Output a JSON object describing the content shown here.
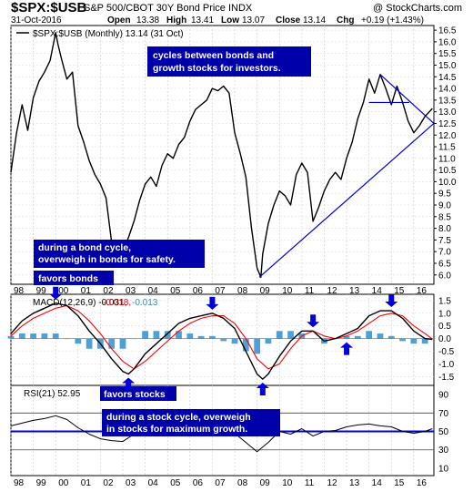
{
  "header": {
    "symbol": "$SPX:$USB",
    "name": "S&P 500/CBOT 30Y Bond Price INDX",
    "watermark": "@ StockCharts.com",
    "date": "31-Oct-2016",
    "open_label": "Open",
    "open": "13.38",
    "high_label": "High",
    "high": "13.41",
    "low_label": "Low",
    "low": "13.07",
    "close_label": "Close",
    "close": "13.14",
    "chg_label": "Chg",
    "chg": "+0.19 (+1.43%)"
  },
  "price_panel": {
    "legend": "$SPX:$USB (Monthly) 13.14 (31 Oct)"
  },
  "macd_panel": {
    "legend_label": "MACD(12,26,9) -0.031,",
    "legend_signal": "-0.018,",
    "legend_hist": "-0.013"
  },
  "rsi_panel": {
    "legend": "RSI(21) 52.95"
  },
  "annotations": {
    "cycles": [
      "cycles between bonds and",
      "growth stocks for investors."
    ],
    "bond_cycle": [
      "during a bond cycle,",
      "overweigh in bonds for safety."
    ],
    "favors_bonds": "favors bonds",
    "favors_stocks": "favors stocks",
    "stock_cycle": [
      "during a stock cycle, overweigh",
      "in stocks for maximum growth."
    ]
  },
  "chart_data": [
    {
      "type": "line",
      "panel": "price",
      "title": "$SPX:$USB (Monthly) 13.14 (31 Oct)",
      "x_categories": [
        "98",
        "99",
        "00",
        "01",
        "02",
        "03",
        "04",
        "05",
        "06",
        "07",
        "08",
        "09",
        "10",
        "11",
        "12",
        "13",
        "14",
        "15",
        "16"
      ],
      "x_range": [
        1998.0,
        2016.9
      ],
      "ylim": [
        5.6,
        16.7
      ],
      "y_ticks": [
        6.0,
        6.5,
        7.0,
        7.5,
        8.0,
        8.5,
        9.0,
        9.5,
        10.0,
        10.5,
        11.0,
        11.5,
        12.0,
        12.5,
        13.0,
        13.5,
        14.0,
        14.5,
        15.0,
        15.5,
        16.0,
        16.5
      ],
      "grid": true,
      "series": [
        {
          "color": "#000000",
          "x": [
            1998.0,
            1998.25,
            1998.5,
            1998.75,
            1999.0,
            1999.25,
            1999.5,
            1999.75,
            2000.0,
            2000.1,
            2000.25,
            2000.5,
            2000.75,
            2001.0,
            2001.25,
            2001.5,
            2001.75,
            2002.0,
            2002.25,
            2002.5,
            2002.75,
            2003.0,
            2003.25,
            2003.5,
            2003.75,
            2004.0,
            2004.25,
            2004.5,
            2004.75,
            2005.0,
            2005.25,
            2005.5,
            2005.75,
            2006.0,
            2006.25,
            2006.5,
            2006.75,
            2007.0,
            2007.25,
            2007.5,
            2007.75,
            2008.0,
            2008.25,
            2008.5,
            2008.75,
            2009.0,
            2009.17,
            2009.25,
            2009.5,
            2009.75,
            2010.0,
            2010.25,
            2010.5,
            2010.75,
            2011.0,
            2011.25,
            2011.5,
            2011.75,
            2012.0,
            2012.25,
            2012.5,
            2012.75,
            2013.0,
            2013.25,
            2013.5,
            2013.75,
            2014.0,
            2014.25,
            2014.5,
            2014.75,
            2015.0,
            2015.25,
            2015.5,
            2015.75,
            2016.0,
            2016.25,
            2016.5,
            2016.83
          ],
          "y": [
            10.4,
            12.1,
            13.3,
            12.2,
            13.6,
            14.3,
            14.7,
            15.2,
            16.4,
            15.9,
            15.3,
            14.4,
            14.7,
            12.4,
            11.7,
            10.9,
            10.3,
            9.9,
            9.3,
            7.4,
            7.1,
            7.0,
            7.6,
            8.3,
            9.2,
            9.9,
            10.2,
            9.8,
            10.7,
            11.2,
            11.0,
            11.6,
            11.9,
            12.6,
            13.1,
            13.3,
            13.5,
            14.0,
            13.9,
            14.1,
            13.8,
            12.1,
            11.2,
            10.2,
            8.0,
            6.3,
            5.9,
            6.9,
            8.2,
            9.0,
            9.6,
            9.4,
            9.0,
            10.3,
            10.8,
            10.4,
            8.3,
            8.9,
            9.6,
            10.1,
            10.4,
            10.1,
            11.0,
            11.7,
            12.7,
            13.4,
            14.4,
            13.8,
            14.6,
            14.0,
            13.3,
            14.1,
            13.4,
            12.6,
            12.1,
            12.4,
            12.8,
            13.14
          ]
        }
      ],
      "trendlines": [
        {
          "color": "#0000dd",
          "x": [
            2009.1,
            2016.9
          ],
          "y": [
            5.9,
            12.5
          ]
        },
        {
          "color": "#0000dd",
          "x": [
            2014.5,
            2016.9
          ],
          "y": [
            14.6,
            12.5
          ]
        },
        {
          "color": "#0000dd",
          "x": [
            2014.0,
            2015.8
          ],
          "y": [
            13.4,
            13.4
          ]
        }
      ]
    },
    {
      "type": "bar",
      "panel": "macd",
      "title": "MACD(12,26,9) -0.031, -0.018, -0.013",
      "ylim": [
        -1.85,
        1.75
      ],
      "y_ticks": [
        -1.5,
        -1.0,
        -0.5,
        0.0,
        0.5,
        1.0,
        1.5
      ],
      "x_range": [
        1998.0,
        2016.9
      ],
      "series": [
        {
          "name": "MACD(12,26,9)",
          "type": "line",
          "color": "#000000",
          "x": [
            1998.0,
            1998.5,
            1999.0,
            1999.5,
            2000.0,
            2000.5,
            2001.0,
            2001.5,
            2002.0,
            2002.5,
            2003.0,
            2003.25,
            2003.5,
            2004.0,
            2004.5,
            2005.0,
            2005.5,
            2006.0,
            2006.5,
            2007.0,
            2007.5,
            2008.0,
            2008.5,
            2009.0,
            2009.25,
            2009.5,
            2010.0,
            2010.5,
            2011.0,
            2011.5,
            2012.0,
            2012.5,
            2013.0,
            2013.5,
            2014.0,
            2014.5,
            2015.0,
            2015.5,
            2016.0,
            2016.5,
            2016.83
          ],
          "y": [
            0.2,
            0.7,
            1.0,
            1.2,
            1.4,
            1.3,
            0.9,
            0.3,
            -0.2,
            -0.8,
            -1.3,
            -1.4,
            -1.2,
            -0.6,
            -0.2,
            0.2,
            0.6,
            0.8,
            0.9,
            1.0,
            0.8,
            0.4,
            -0.5,
            -1.4,
            -1.6,
            -1.4,
            -0.7,
            -0.1,
            0.3,
            0.3,
            -0.1,
            0.0,
            0.2,
            0.4,
            0.9,
            1.1,
            1.1,
            0.8,
            0.3,
            0.0,
            -0.031
          ]
        },
        {
          "name": "-0.018,",
          "type": "line",
          "color": "#ff0000",
          "x": [
            1998.0,
            1998.5,
            1999.0,
            1999.5,
            2000.0,
            2000.5,
            2001.0,
            2001.5,
            2002.0,
            2002.5,
            2003.0,
            2003.5,
            2004.0,
            2004.5,
            2005.0,
            2005.5,
            2006.0,
            2006.5,
            2007.0,
            2007.5,
            2008.0,
            2008.5,
            2009.0,
            2009.5,
            2010.0,
            2010.5,
            2011.0,
            2011.5,
            2012.0,
            2012.5,
            2013.0,
            2013.5,
            2014.0,
            2014.5,
            2015.0,
            2015.5,
            2016.0,
            2016.5,
            2016.83
          ],
          "y": [
            0.1,
            0.5,
            0.8,
            1.0,
            1.2,
            1.3,
            1.1,
            0.7,
            0.2,
            -0.4,
            -0.9,
            -1.2,
            -0.9,
            -0.5,
            -0.1,
            0.3,
            0.6,
            0.8,
            0.9,
            0.9,
            0.6,
            0.0,
            -0.8,
            -1.2,
            -1.0,
            -0.4,
            0.1,
            0.3,
            0.1,
            0.0,
            0.1,
            0.3,
            0.6,
            0.9,
            1.0,
            0.9,
            0.5,
            0.2,
            -0.018
          ]
        },
        {
          "name": "-0.013",
          "type": "histogram",
          "color": "#2f8fd0",
          "x": [
            1998.0,
            1998.5,
            1999.0,
            1999.5,
            2000.0,
            2000.5,
            2001.0,
            2001.5,
            2002.0,
            2002.5,
            2003.0,
            2003.5,
            2004.0,
            2004.5,
            2005.0,
            2005.5,
            2006.0,
            2006.5,
            2007.0,
            2007.5,
            2008.0,
            2008.5,
            2009.0,
            2009.5,
            2010.0,
            2010.5,
            2011.0,
            2011.5,
            2012.0,
            2012.5,
            2013.0,
            2013.5,
            2014.0,
            2014.5,
            2015.0,
            2015.5,
            2016.0,
            2016.5,
            2016.83
          ],
          "y": [
            0.1,
            0.2,
            0.2,
            0.2,
            0.2,
            0.0,
            -0.2,
            -0.4,
            -0.4,
            -0.4,
            -0.4,
            0.0,
            0.3,
            0.3,
            0.3,
            0.3,
            0.2,
            0.1,
            0.1,
            -0.1,
            -0.2,
            -0.5,
            -0.6,
            -0.2,
            0.3,
            0.3,
            0.2,
            0.0,
            -0.2,
            0.0,
            0.1,
            0.1,
            0.3,
            0.2,
            0.1,
            -0.1,
            -0.2,
            -0.2,
            -0.013
          ]
        }
      ]
    },
    {
      "type": "line",
      "panel": "rsi",
      "title": "RSI(21) 52.95",
      "ylim": [
        2,
        100
      ],
      "y_ticks": [
        10,
        30,
        50,
        70,
        90
      ],
      "x_range": [
        1998.0,
        2016.9
      ],
      "x_tick_labels": [
        "98",
        "99",
        "00",
        "01",
        "02",
        "03",
        "04",
        "05",
        "06",
        "07",
        "08",
        "09",
        "10",
        "11",
        "12",
        "13",
        "14",
        "15",
        "16"
      ],
      "reference_lines": [
        30,
        50,
        70
      ],
      "series": [
        {
          "color": "#000000",
          "x": [
            1998.0,
            1998.5,
            1999.0,
            1999.5,
            2000.0,
            2000.5,
            2001.0,
            2001.5,
            2002.0,
            2002.5,
            2003.0,
            2003.5,
            2004.0,
            2004.5,
            2005.0,
            2005.5,
            2006.0,
            2006.5,
            2007.0,
            2007.5,
            2008.0,
            2008.5,
            2009.0,
            2009.5,
            2010.0,
            2010.5,
            2011.0,
            2011.5,
            2012.0,
            2012.5,
            2013.0,
            2013.5,
            2014.0,
            2014.5,
            2015.0,
            2015.5,
            2016.0,
            2016.5,
            2016.83
          ],
          "y": [
            56,
            59,
            62,
            64,
            67,
            63,
            54,
            47,
            42,
            40,
            39,
            47,
            51,
            50,
            53,
            54,
            55,
            56,
            57,
            54,
            48,
            38,
            28,
            38,
            50,
            47,
            53,
            45,
            50,
            51,
            55,
            57,
            58,
            56,
            55,
            50,
            48,
            50,
            52.95
          ]
        }
      ]
    }
  ]
}
